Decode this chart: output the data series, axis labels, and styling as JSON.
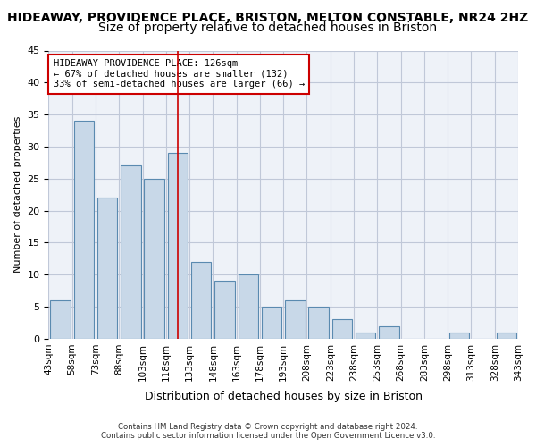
{
  "title": "HIDEAWAY, PROVIDENCE PLACE, BRISTON, MELTON CONSTABLE, NR24 2HZ",
  "subtitle": "Size of property relative to detached houses in Briston",
  "xlabel": "Distribution of detached houses by size in Briston",
  "ylabel": "Number of detached properties",
  "footer1": "Contains HM Land Registry data © Crown copyright and database right 2024.",
  "footer2": "Contains public sector information licensed under the Open Government Licence v3.0.",
  "bin_labels": [
    "43sqm",
    "58sqm",
    "73sqm",
    "88sqm",
    "103sqm",
    "118sqm",
    "133sqm",
    "148sqm",
    "163sqm",
    "178sqm",
    "193sqm",
    "208sqm",
    "223sqm",
    "238sqm",
    "253sqm",
    "268sqm",
    "283sqm",
    "298sqm",
    "313sqm",
    "328sqm",
    "343sqm"
  ],
  "values": [
    6,
    34,
    22,
    27,
    25,
    29,
    12,
    9,
    10,
    5,
    6,
    5,
    3,
    1,
    2,
    0,
    0,
    1,
    0,
    1
  ],
  "bar_color": "#c8d8e8",
  "bar_edge_color": "#5a8ab0",
  "highlight_bin_index": 5,
  "annotation_line1": "HIDEAWAY PROVIDENCE PLACE: 126sqm",
  "annotation_line2": "← 67% of detached houses are smaller (132)",
  "annotation_line3": "33% of semi-detached houses are larger (66) →",
  "annotation_box_color": "#ffffff",
  "annotation_box_edge_color": "#cc0000",
  "annotation_text_color": "#000000",
  "vline_color": "#cc0000",
  "ylim": [
    0,
    45
  ],
  "yticks": [
    0,
    5,
    10,
    15,
    20,
    25,
    30,
    35,
    40,
    45
  ],
  "grid_color": "#c0c8d8",
  "background_color": "#eef2f8",
  "title_fontsize": 10,
  "subtitle_fontsize": 10,
  "tick_fontsize": 7.5
}
